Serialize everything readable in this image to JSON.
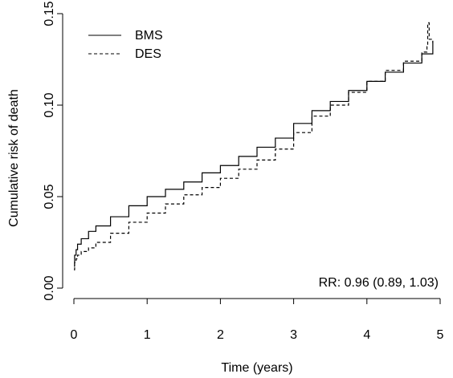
{
  "chart_data": {
    "type": "line",
    "title": "",
    "xlabel": "Time (years)",
    "ylabel": "Cumulative risk of death",
    "xlim": [
      0,
      5
    ],
    "ylim": [
      0,
      0.15
    ],
    "x_ticks": [
      0,
      1,
      2,
      3,
      4,
      5
    ],
    "x_tick_labels": [
      "0",
      "1",
      "2",
      "3",
      "4",
      "5"
    ],
    "y_ticks": [
      0,
      0.05,
      0.1,
      0.15
    ],
    "y_tick_labels": [
      "0.00",
      "0.05",
      "0.10",
      "0.15"
    ],
    "grid": false,
    "legend_position": "top-left",
    "annotation": "RR: 0.96 (0.89, 1.03)",
    "series": [
      {
        "name": "BMS",
        "line_style": "solid",
        "color": "#000000",
        "x": [
          0,
          0.01,
          0.03,
          0.05,
          0.1,
          0.2,
          0.3,
          0.5,
          0.75,
          1.0,
          1.25,
          1.5,
          1.75,
          2.0,
          2.25,
          2.5,
          2.75,
          3.0,
          3.25,
          3.5,
          3.75,
          4.0,
          4.25,
          4.5,
          4.75,
          4.9
        ],
        "y": [
          0.012,
          0.018,
          0.021,
          0.024,
          0.027,
          0.031,
          0.034,
          0.039,
          0.045,
          0.05,
          0.054,
          0.058,
          0.063,
          0.067,
          0.072,
          0.077,
          0.082,
          0.09,
          0.097,
          0.102,
          0.108,
          0.113,
          0.118,
          0.123,
          0.128,
          0.135
        ]
      },
      {
        "name": "DES",
        "line_style": "dashed",
        "color": "#000000",
        "x": [
          0,
          0.01,
          0.03,
          0.05,
          0.1,
          0.2,
          0.3,
          0.5,
          0.75,
          1.0,
          1.25,
          1.5,
          1.75,
          2.0,
          2.25,
          2.5,
          2.75,
          3.0,
          3.25,
          3.5,
          3.75,
          4.0,
          4.25,
          4.5,
          4.75,
          4.82,
          4.83,
          4.85,
          4.9
        ],
        "y": [
          0.01,
          0.014,
          0.016,
          0.018,
          0.02,
          0.022,
          0.025,
          0.03,
          0.036,
          0.041,
          0.046,
          0.051,
          0.055,
          0.06,
          0.065,
          0.07,
          0.076,
          0.085,
          0.094,
          0.1,
          0.107,
          0.113,
          0.119,
          0.124,
          0.129,
          0.132,
          0.145,
          0.136,
          0.134
        ]
      }
    ]
  }
}
